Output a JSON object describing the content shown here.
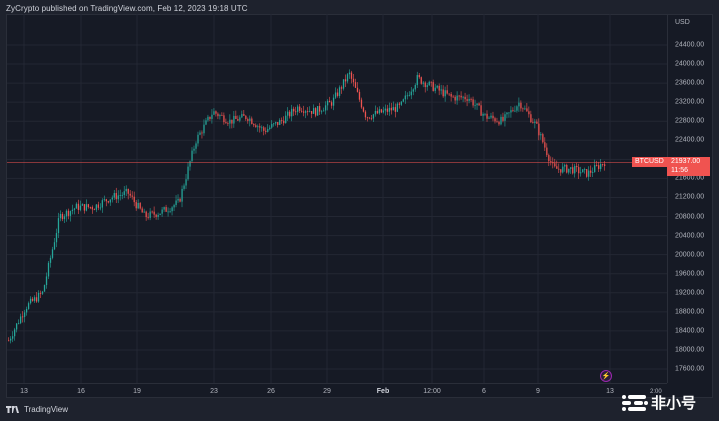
{
  "header": {
    "published_text": "ZyCrypto published on TradingView.com, Feb 12, 2023 19:18 UTC"
  },
  "price_axis": {
    "unit": "USD",
    "labels": [
      "24400.00",
      "24000.00",
      "23600.00",
      "23200.00",
      "22800.00",
      "22400.00",
      "21600.00",
      "21200.00",
      "20800.00",
      "20400.00",
      "20000.00",
      "19600.00",
      "19200.00",
      "18800.00",
      "18400.00",
      "18000.00",
      "17600.00"
    ]
  },
  "time_axis": {
    "labels": [
      "13",
      "16",
      "19",
      "23",
      "26",
      "29",
      "Feb",
      "12:00",
      "6",
      "9",
      "13"
    ],
    "partial_label": "2:00"
  },
  "current_price": {
    "symbol": "BTCUSD",
    "value": "21937.00",
    "countdown": "11:56",
    "color": "#f05350"
  },
  "footer": {
    "brand": "TradingView",
    "watermark": "非小号"
  },
  "icons": {
    "flash": "lightning-icon",
    "tv_logo": "tradingview-logo-icon",
    "watermark_logo": "feixiaohao-logo-icon"
  },
  "colors": {
    "background": "#161a25",
    "grid": "#232733",
    "up": "#26a69a",
    "down": "#ef5350",
    "text": "#b2b5be",
    "price_line": "#f05350"
  },
  "chart_data": {
    "type": "candlestick",
    "title": "BTCUSD",
    "xlabel": "",
    "ylabel": "USD",
    "ylim": [
      17400,
      24800
    ],
    "x_ticks": [
      "13",
      "16",
      "19",
      "23",
      "26",
      "29",
      "Feb",
      "12:00",
      "6",
      "9",
      "13"
    ],
    "y_ticks": [
      17600,
      18000,
      18400,
      18800,
      19200,
      19600,
      20000,
      20400,
      20800,
      21200,
      21600,
      22000,
      22400,
      22800,
      23200,
      23600,
      24000,
      24400
    ],
    "grid": true,
    "current_price": 21937.0,
    "approx_path": {
      "x": [
        "Jan 12",
        "Jan 13",
        "Jan 13.5",
        "Jan 14",
        "Jan 15",
        "Jan 16",
        "Jan 17",
        "Jan 18",
        "Jan 18.5",
        "Jan 19",
        "Jan 20",
        "Jan 20.5",
        "Jan 21",
        "Jan 22",
        "Jan 23",
        "Jan 24",
        "Jan 25",
        "Jan 26",
        "Jan 27",
        "Jan 28",
        "Jan 29",
        "Jan 30",
        "Jan 31",
        "Feb 1",
        "Feb 2",
        "Feb 3",
        "Feb 4",
        "Feb 5",
        "Feb 6",
        "Feb 7",
        "Feb 8",
        "Feb 9",
        "Feb 9.5",
        "Feb 10",
        "Feb 11",
        "Feb 12"
      ],
      "y": [
        18200,
        18900,
        19200,
        20800,
        21000,
        21000,
        21200,
        21300,
        20800,
        20900,
        21100,
        22400,
        23000,
        22800,
        22900,
        22600,
        22800,
        23100,
        23000,
        23200,
        23800,
        22900,
        23000,
        23100,
        23700,
        23500,
        23300,
        23300,
        22900,
        22800,
        23200,
        22700,
        21800,
        21800,
        21700,
        21950
      ]
    }
  }
}
